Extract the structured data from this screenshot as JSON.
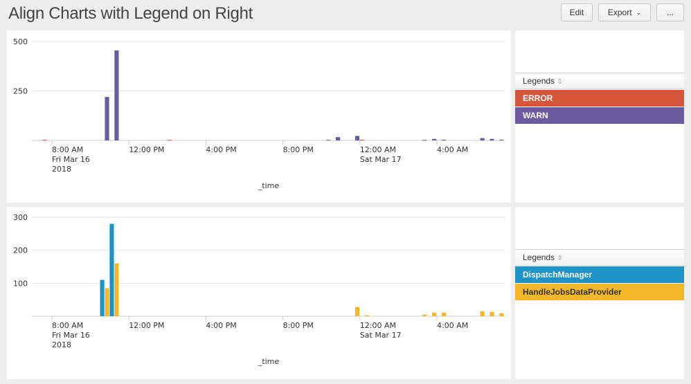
{
  "header": {
    "title": "Align Charts with Legend on Right",
    "edit_label": "Edit",
    "export_label": "Export",
    "more_label": "..."
  },
  "colors": {
    "ERROR": "#d6563c",
    "WARN": "#6a5c9e",
    "DispatchManager": "#1e93c6",
    "HandleJobsDataProvider": "#f2b827"
  },
  "legends": [
    {
      "title": "Legends",
      "items": [
        {
          "label": "ERROR",
          "color": "#d6563c",
          "text_color": "#ffffff"
        },
        {
          "label": "WARN",
          "color": "#6a5c9e",
          "text_color": "#ffffff"
        }
      ]
    },
    {
      "title": "Legends",
      "items": [
        {
          "label": "DispatchManager",
          "color": "#1e93c6",
          "text_color": "#ffffff"
        },
        {
          "label": "HandleJobsDataProvider",
          "color": "#f2b827",
          "text_color": "#333333"
        }
      ]
    }
  ],
  "chart_data": [
    {
      "type": "bar",
      "xlabel": "_time",
      "ylabel": "",
      "ylim": [
        0,
        500
      ],
      "yticks": [
        "500",
        "250"
      ],
      "ytick_values": [
        500,
        250
      ],
      "grid": true,
      "legend": "right",
      "bucket": "30m",
      "xticks": [
        {
          "lines": [
            "8:00 AM",
            "Fri Mar 16",
            "2018"
          ]
        },
        {
          "lines": [
            "12:00 PM"
          ]
        },
        {
          "lines": [
            "4:00 PM"
          ]
        },
        {
          "lines": [
            "8:00 PM"
          ]
        },
        {
          "lines": [
            "12:00 AM",
            "Sat Mar 17"
          ]
        },
        {
          "lines": [
            "4:00 AM"
          ]
        }
      ],
      "x": [
        "2018-03-16 07:30",
        "2018-03-16 10:30",
        "2018-03-16 11:00",
        "2018-03-16 14:00",
        "2018-03-16 22:00",
        "2018-03-16 22:30",
        "2018-03-16 23:30",
        "2018-03-17 00:00",
        "2018-03-17 03:00",
        "2018-03-17 03:30",
        "2018-03-17 04:00",
        "2018-03-17 06:00",
        "2018-03-17 06:30",
        "2018-03-17 07:00"
      ],
      "series": [
        {
          "name": "ERROR",
          "values": [
            3,
            0,
            0,
            3,
            0,
            0,
            0,
            4,
            0,
            0,
            0,
            0,
            0,
            0
          ]
        },
        {
          "name": "WARN",
          "values": [
            0,
            220,
            455,
            0,
            3,
            17,
            23,
            0,
            3,
            8,
            4,
            12,
            8,
            4
          ]
        }
      ]
    },
    {
      "type": "bar",
      "xlabel": "_time",
      "ylabel": "",
      "ylim": [
        0,
        300
      ],
      "yticks": [
        "300",
        "200",
        "100"
      ],
      "ytick_values": [
        300,
        200,
        100
      ],
      "grid": true,
      "legend": "right",
      "bucket": "30m",
      "xticks": [
        {
          "lines": [
            "8:00 AM",
            "Fri Mar 16",
            "2018"
          ]
        },
        {
          "lines": [
            "12:00 PM"
          ]
        },
        {
          "lines": [
            "4:00 PM"
          ]
        },
        {
          "lines": [
            "8:00 PM"
          ]
        },
        {
          "lines": [
            "12:00 AM",
            "Sat Mar 17"
          ]
        },
        {
          "lines": [
            "4:00 AM"
          ]
        }
      ],
      "x": [
        "2018-03-16 10:30",
        "2018-03-16 11:00",
        "2018-03-16 23:30",
        "2018-03-17 00:00",
        "2018-03-17 03:00",
        "2018-03-17 03:30",
        "2018-03-17 04:00",
        "2018-03-17 06:00",
        "2018-03-17 06:30",
        "2018-03-17 07:00"
      ],
      "series": [
        {
          "name": "DispatchManager",
          "values": [
            110,
            280,
            0,
            0,
            0,
            0,
            0,
            0,
            0,
            0
          ]
        },
        {
          "name": "HandleJobsDataProvider",
          "values": [
            85,
            160,
            28,
            3,
            5,
            11,
            11,
            15,
            13,
            9
          ]
        }
      ]
    }
  ]
}
